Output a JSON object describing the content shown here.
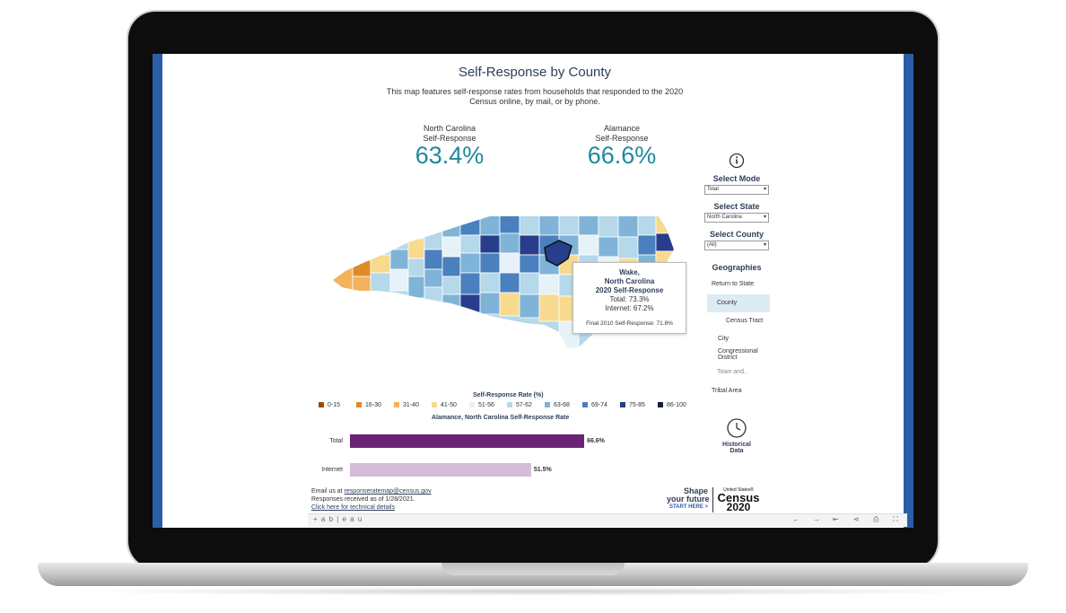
{
  "title": "Self-Response by County",
  "subtitle": "This map features self-response rates from households that responded to the 2020 Census online, by mail, or by phone.",
  "metrics": [
    {
      "label_line1": "North Carolina",
      "label_line2": "Self-Response",
      "value": "63.4%"
    },
    {
      "label_line1": "Alamance",
      "label_line2": "Self-Response",
      "value": "66.6%"
    }
  ],
  "tooltip": {
    "line1": "Wake,",
    "line2": "North Carolina",
    "line3": "2020 Self-Response",
    "total": "Total: 73.3%",
    "internet": "Internet: 67.2%",
    "final2010": "Final 2010 Self-Response: 71.8%"
  },
  "sidebar": {
    "info_icon": "info-icon",
    "mode_label": "Select Mode",
    "mode_value": "Total",
    "state_label": "Select State",
    "state_value": "North Carolina",
    "county_label": "Select County",
    "county_value": "(All)",
    "geographies_label": "Geographies",
    "geographies": [
      {
        "label": "Return to State"
      },
      {
        "label": "County",
        "selected": true
      },
      {
        "label": "Census Tract"
      },
      {
        "label": "City"
      },
      {
        "label": "Congressional District"
      },
      {
        "label": "Town and.."
      },
      {
        "label": "Tribal Area"
      }
    ],
    "historical_icon": "clock-icon",
    "historical_line1": "Historical",
    "historical_line2": "Data"
  },
  "legend": {
    "title": "Self-Response Rate (%)",
    "items": [
      {
        "label": "0-15",
        "color": "#9c4a06"
      },
      {
        "label": "16-30",
        "color": "#e08a26"
      },
      {
        "label": "31-40",
        "color": "#f4b25c"
      },
      {
        "label": "41-50",
        "color": "#f8da8e"
      },
      {
        "label": "51-56",
        "color": "#e6f1f8"
      },
      {
        "label": "57-62",
        "color": "#b5d8ea"
      },
      {
        "label": "63-68",
        "color": "#7fb4d8"
      },
      {
        "label": "69-74",
        "color": "#4a80be"
      },
      {
        "label": "75-85",
        "color": "#283e8c"
      },
      {
        "label": "86-100",
        "color": "#121e44"
      }
    ]
  },
  "chart_data": {
    "type": "bar",
    "title": "Alamance, North Carolina Self-Response Rate",
    "categories": [
      "Total",
      "Internet"
    ],
    "values": [
      66.6,
      51.5
    ],
    "value_labels": [
      "66.6%",
      "51.5%"
    ],
    "colors": [
      "#6b2475",
      "#d5bcd8"
    ],
    "xlim": [
      0,
      100
    ]
  },
  "footer": {
    "email_prefix": "Email us at ",
    "email": "responseratemap@census.gov",
    "received": "Responses received as of 1/28/2021.",
    "technical": "Click here for technical details"
  },
  "census_logo": {
    "shape": "Shape",
    "your_future": "your future",
    "start_here": "START HERE >",
    "united_states": "United States®",
    "census": "Census",
    "year": "2020"
  },
  "toolbar": {
    "brand": "+ a b | e a u",
    "icons": [
      "undo-icon",
      "redo-icon",
      "revert-icon",
      "share-icon",
      "download-icon",
      "fullscreen-icon"
    ]
  },
  "colors": {
    "title": "#2f3e5a",
    "metric": "#1f8a9b",
    "accent_frame": "#2a5ea8"
  }
}
